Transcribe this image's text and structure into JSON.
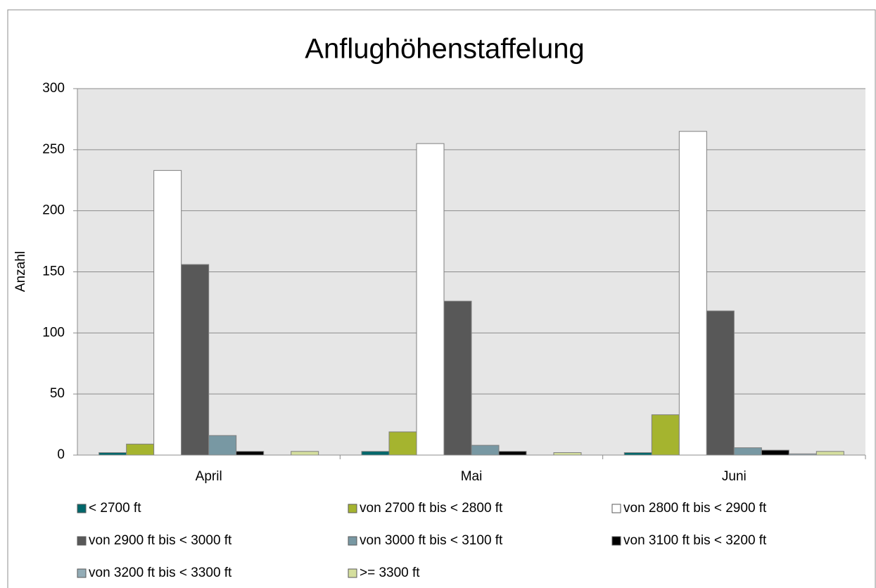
{
  "chart_data": {
    "type": "bar",
    "title": "Anflughöhenstaffelung",
    "y_label": "Anzahl",
    "categories": [
      "April",
      "Mai",
      "Juni"
    ],
    "series": [
      {
        "name": "< 2700 ft",
        "color": "#00676b",
        "values": [
          2,
          3,
          2
        ]
      },
      {
        "name": "von 2700 ft bis < 2800 ft",
        "color": "#a5b42f",
        "values": [
          9,
          19,
          33
        ]
      },
      {
        "name": "von 2800 ft bis < 2900 ft",
        "color": "#ffffff",
        "values": [
          233,
          255,
          265
        ]
      },
      {
        "name": "von 2900 ft bis < 3000 ft",
        "color": "#585858",
        "values": [
          156,
          126,
          118
        ]
      },
      {
        "name": "von 3000 ft bis < 3100 ft",
        "color": "#7898a3",
        "values": [
          16,
          8,
          6
        ]
      },
      {
        "name": "von 3100 ft bis < 3200 ft",
        "color": "#000000",
        "values": [
          3,
          3,
          4
        ]
      },
      {
        "name": "von 3200 ft bis < 3300 ft",
        "color": "#93acb6",
        "values": [
          0,
          0,
          1
        ]
      },
      {
        "name": ">= 3300 ft",
        "color": "#d5df9e",
        "values": [
          3,
          2,
          3
        ]
      }
    ],
    "ylim": [
      0,
      300
    ],
    "yticks": [
      0,
      50,
      100,
      150,
      200,
      250,
      300
    ],
    "grid": true,
    "legend": "bottom"
  }
}
